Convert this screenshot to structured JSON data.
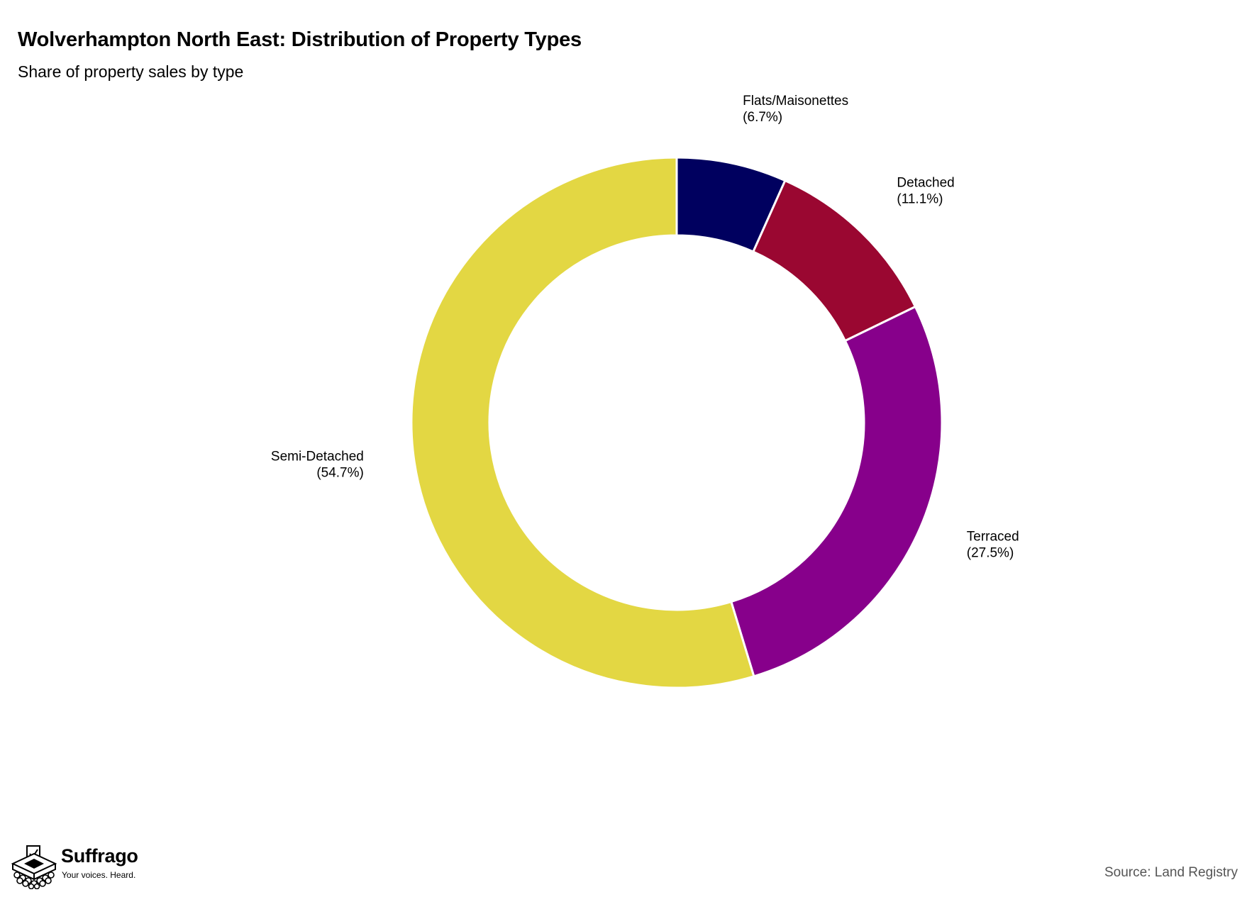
{
  "title": "Wolverhampton North East: Distribution of Property Types",
  "subtitle": "Share of property sales by type",
  "source": "Source: Land Registry",
  "brand": {
    "name": "Suffrago",
    "tagline": "Your voices. Heard."
  },
  "chart_data": {
    "type": "pie",
    "variant": "donut",
    "slices": [
      {
        "label": "Flats/Maisonettes",
        "value": 6.7,
        "display": "(6.7%)",
        "color": "#00005f"
      },
      {
        "label": "Detached",
        "value": 11.1,
        "display": "(11.1%)",
        "color": "#9a0731"
      },
      {
        "label": "Terraced",
        "value": 27.5,
        "display": "(27.5%)",
        "color": "#87008b"
      },
      {
        "label": "Semi-Detached",
        "value": 54.7,
        "display": "(54.7%)",
        "color": "#e3d743"
      }
    ],
    "start": "12 o'clock",
    "direction": "clockwise",
    "legend": "none"
  }
}
